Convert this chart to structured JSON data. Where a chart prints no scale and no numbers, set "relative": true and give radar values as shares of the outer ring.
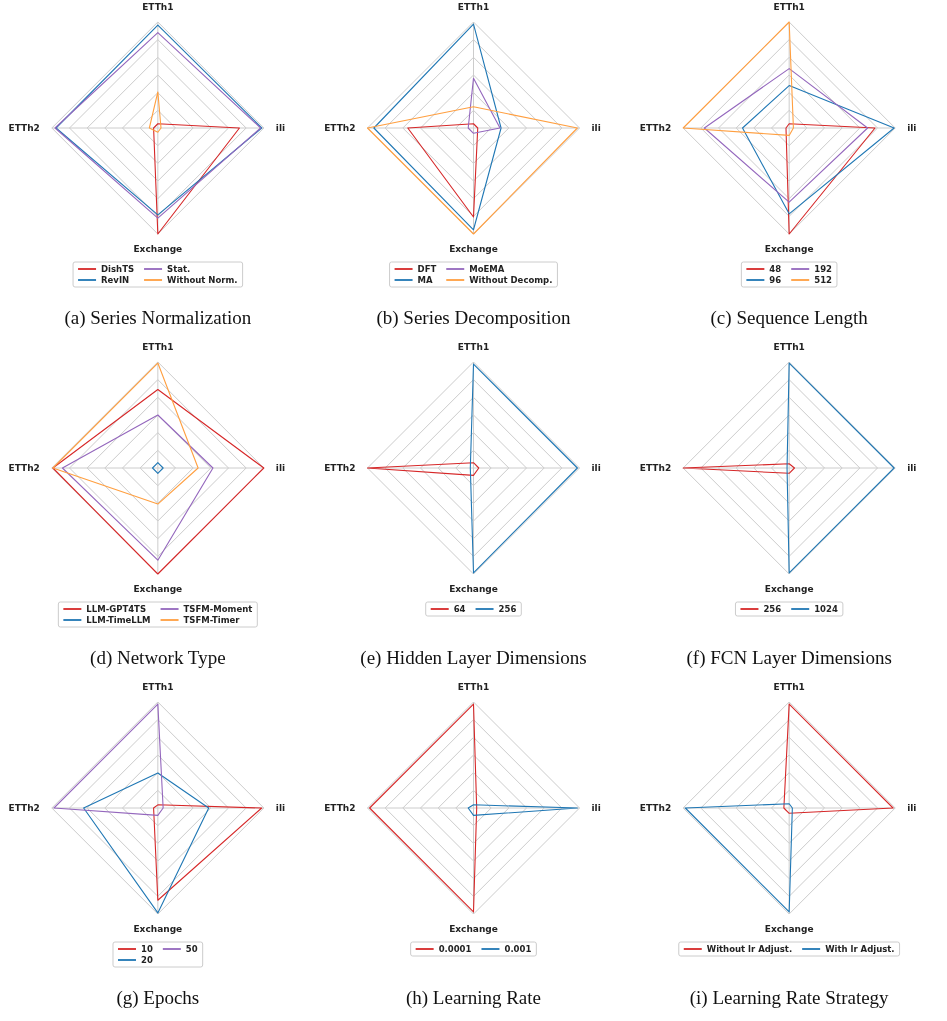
{
  "chart_data": [
    {
      "type": "radar",
      "title": "(a) Series Normalization",
      "categories": [
        "ETTh1",
        "ili",
        "Exchange",
        "ETTh2"
      ],
      "relative": true,
      "grid": true,
      "legend": "bottom",
      "series": [
        {
          "name": "DishTS",
          "color": "#d62728",
          "values": [
            0.04,
            0.77,
            1.0,
            0.04
          ]
        },
        {
          "name": "RevIN",
          "color": "#1f77b4",
          "values": [
            0.97,
            0.98,
            0.82,
            0.96
          ]
        },
        {
          "name": "Stat.",
          "color": "#9467bd",
          "values": [
            0.9,
            0.97,
            0.85,
            0.97
          ]
        },
        {
          "name": "Without Norm.",
          "color": "#ff9f40",
          "values": [
            0.34,
            0.03,
            0.04,
            0.08
          ]
        }
      ]
    },
    {
      "type": "radar",
      "title": "(b) Series Decomposition",
      "categories": [
        "ETTh1",
        "ili",
        "Exchange",
        "ETTh2"
      ],
      "relative": true,
      "grid": true,
      "legend": "bottom",
      "series": [
        {
          "name": "DFT",
          "color": "#d62728",
          "values": [
            0.04,
            0.04,
            0.84,
            0.62
          ]
        },
        {
          "name": "MA",
          "color": "#1f77b4",
          "values": [
            0.98,
            0.26,
            0.96,
            0.94
          ]
        },
        {
          "name": "MoEMA",
          "color": "#9467bd",
          "values": [
            0.47,
            0.25,
            0.05,
            0.05
          ]
        },
        {
          "name": "Without Decomp.",
          "color": "#ff9f40",
          "values": [
            0.2,
            0.98,
            1.0,
            1.0
          ]
        }
      ]
    },
    {
      "type": "radar",
      "title": "(c) Sequence Length",
      "categories": [
        "ETTh1",
        "ili",
        "Exchange",
        "ETTh2"
      ],
      "relative": true,
      "grid": true,
      "legend": "bottom",
      "series": [
        {
          "name": "48",
          "color": "#d62728",
          "values": [
            0.04,
            0.81,
            1.0,
            0.03
          ]
        },
        {
          "name": "96",
          "color": "#1f77b4",
          "values": [
            0.4,
            0.99,
            0.81,
            0.44
          ]
        },
        {
          "name": "192",
          "color": "#9467bd",
          "values": [
            0.56,
            0.74,
            0.7,
            0.8
          ]
        },
        {
          "name": "512",
          "color": "#ff9f40",
          "values": [
            1.0,
            0.04,
            0.07,
            1.0
          ]
        }
      ]
    },
    {
      "type": "radar",
      "title": "(d) Network Type",
      "categories": [
        "ETTh1",
        "ili",
        "Exchange",
        "ETTh2"
      ],
      "relative": true,
      "grid": true,
      "legend": "bottom",
      "series": [
        {
          "name": "LLM-GPT4TS",
          "color": "#d62728",
          "values": [
            0.74,
            1.0,
            1.0,
            0.99
          ]
        },
        {
          "name": "LLM-TimeLLM",
          "color": "#1f77b4",
          "values": [
            0.05,
            0.05,
            0.05,
            0.05
          ]
        },
        {
          "name": "TSFM-Moment",
          "color": "#9467bd",
          "values": [
            0.5,
            0.52,
            0.87,
            0.9
          ]
        },
        {
          "name": "TSFM-Timer",
          "color": "#ff9f40",
          "values": [
            0.99,
            0.38,
            0.34,
            0.99
          ]
        }
      ]
    },
    {
      "type": "radar",
      "title": "(e) Hidden Layer Dimensions",
      "categories": [
        "ETTh1",
        "ili",
        "Exchange",
        "ETTh2"
      ],
      "relative": true,
      "grid": true,
      "legend": "bottom",
      "series": [
        {
          "name": "64",
          "color": "#d62728",
          "values": [
            0.05,
            0.05,
            0.07,
            1.0
          ]
        },
        {
          "name": "256",
          "color": "#1f77b4",
          "values": [
            0.98,
            0.98,
            0.99,
            0.03
          ]
        }
      ]
    },
    {
      "type": "radar",
      "title": "(f) FCN Layer Dimensions",
      "categories": [
        "ETTh1",
        "ili",
        "Exchange",
        "ETTh2"
      ],
      "relative": true,
      "grid": true,
      "legend": "bottom",
      "series": [
        {
          "name": "256",
          "color": "#d62728",
          "values": [
            0.04,
            0.05,
            0.05,
            1.0
          ]
        },
        {
          "name": "1024",
          "color": "#1f77b4",
          "values": [
            0.99,
            0.99,
            0.99,
            0.02
          ]
        }
      ]
    },
    {
      "type": "radar",
      "title": "(g) Epochs",
      "categories": [
        "ETTh1",
        "ili",
        "Exchange",
        "ETTh2"
      ],
      "relative": true,
      "grid": true,
      "legend": "bottom",
      "series": [
        {
          "name": "10",
          "color": "#d62728",
          "values": [
            0.03,
            0.98,
            0.87,
            0.04
          ]
        },
        {
          "name": "20",
          "color": "#1f77b4",
          "values": [
            0.33,
            0.48,
            0.99,
            0.7
          ]
        },
        {
          "name": "50",
          "color": "#9467bd",
          "values": [
            0.98,
            0.05,
            0.07,
            0.98
          ]
        }
      ]
    },
    {
      "type": "radar",
      "title": "(h) Learning Rate",
      "categories": [
        "ETTh1",
        "ili",
        "Exchange",
        "ETTh2"
      ],
      "relative": true,
      "grid": true,
      "legend": "bottom",
      "series": [
        {
          "name": "0.0001",
          "color": "#d62728",
          "values": [
            0.98,
            0.03,
            0.98,
            0.98
          ]
        },
        {
          "name": "0.001",
          "color": "#1f77b4",
          "values": [
            0.03,
            0.98,
            0.07,
            0.05
          ]
        }
      ]
    },
    {
      "type": "radar",
      "title": "(i) Learning Rate Strategy",
      "categories": [
        "ETTh1",
        "ili",
        "Exchange",
        "ETTh2"
      ],
      "relative": true,
      "grid": true,
      "legend": "bottom",
      "series": [
        {
          "name": "Without lr Adjust.",
          "color": "#d62728",
          "values": [
            0.98,
            0.98,
            0.05,
            0.05
          ]
        },
        {
          "name": "With lr Adjust.",
          "color": "#1f77b4",
          "values": [
            0.04,
            0.03,
            0.98,
            0.98
          ]
        }
      ]
    }
  ]
}
